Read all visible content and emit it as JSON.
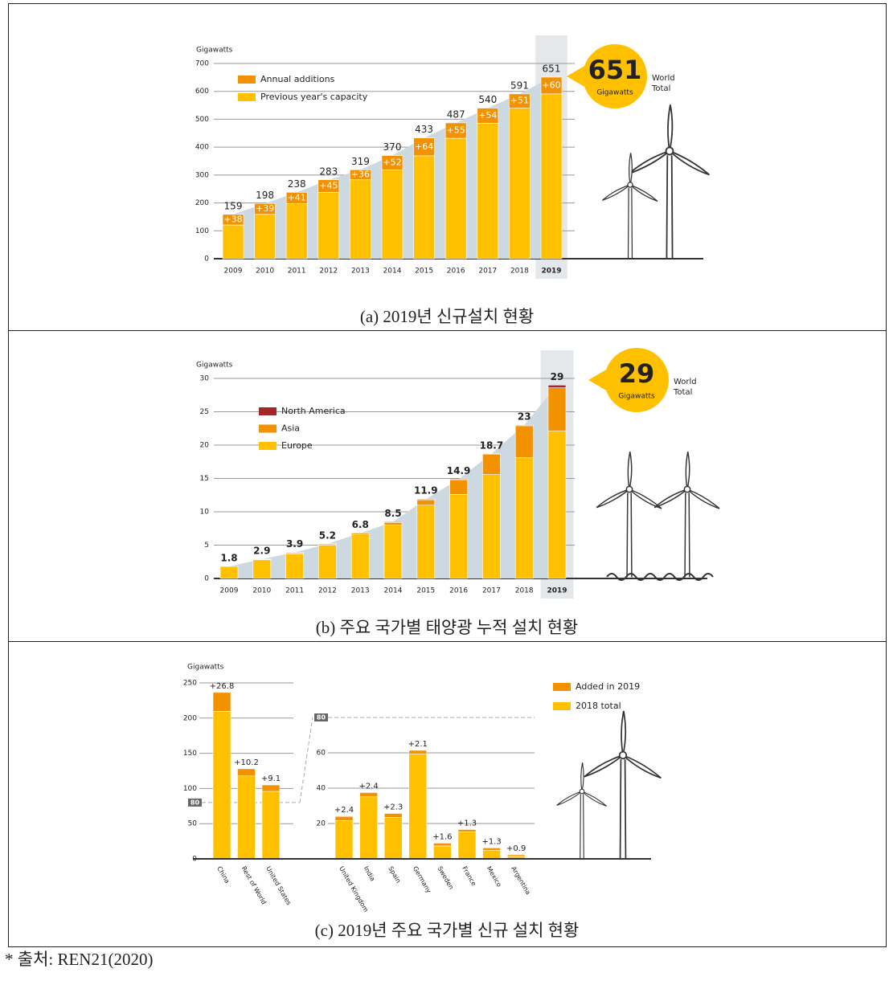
{
  "chart_data": [
    {
      "type": "stacked_bar",
      "y_label": "Gigawatts",
      "categories": [
        "2009",
        "2010",
        "2011",
        "2012",
        "2013",
        "2014",
        "2015",
        "2016",
        "2017",
        "2018",
        "2019"
      ],
      "series": [
        {
          "name": "Previous year's capacity",
          "color": "#ffc000",
          "values": [
            121,
            159,
            197,
            238,
            283,
            318,
            369,
            432,
            486,
            540,
            591
          ]
        },
        {
          "name": "Annual additions",
          "color": "#f39200",
          "values": [
            38,
            39,
            41,
            45,
            36,
            52,
            64,
            55,
            54,
            51,
            60
          ],
          "value_labels": [
            "+38",
            "+39",
            "+41",
            "+45",
            "+36",
            "+52",
            "+64",
            "+55",
            "+54",
            "+51",
            "+60"
          ]
        }
      ],
      "totals": [
        159,
        198,
        238,
        283,
        319,
        370,
        433,
        487,
        540,
        591,
        651
      ],
      "ylim": [
        0,
        700
      ],
      "yticks": [
        0,
        100,
        200,
        300,
        400,
        500,
        600,
        700
      ],
      "callout": {
        "number": 651,
        "unit": "Gigawatts",
        "label": [
          "World",
          "Total"
        ]
      }
    },
    {
      "type": "stacked_bar",
      "y_label": "Gigawatts",
      "categories": [
        "2009",
        "2010",
        "2011",
        "2012",
        "2013",
        "2014",
        "2015",
        "2016",
        "2017",
        "2018",
        "2019"
      ],
      "series": [
        {
          "name": "Europe",
          "color": "#ffc000",
          "values": [
            1.8,
            2.8,
            3.7,
            5.0,
            6.6,
            8.0,
            11.0,
            12.6,
            15.6,
            18.1,
            22.1
          ]
        },
        {
          "name": "Asia",
          "color": "#f39200",
          "values": [
            0,
            0.05,
            0.1,
            0.1,
            0.2,
            0.4,
            0.8,
            2.2,
            3.0,
            4.8,
            6.5
          ]
        },
        {
          "name": "North America",
          "color": "#a3262a",
          "values": [
            0,
            0.05,
            0.1,
            0.1,
            0,
            0.1,
            0.1,
            0.1,
            0.1,
            0.1,
            0.4
          ]
        }
      ],
      "totals": [
        1.8,
        2.9,
        3.9,
        5.2,
        6.8,
        8.5,
        11.9,
        14.9,
        18.7,
        23,
        29
      ],
      "ylim": [
        0,
        30
      ],
      "yticks": [
        0,
        5,
        10,
        15,
        20,
        25,
        30
      ],
      "callout": {
        "number": 29,
        "unit": "Gigawatts",
        "label": [
          "World",
          "Total"
        ]
      }
    },
    {
      "type": "split_stacked_bar",
      "y_label": "Gigawatts",
      "series": [
        {
          "name": "2018 total",
          "color": "#ffc000"
        },
        {
          "name": "Added in 2019",
          "color": "#f39200"
        }
      ],
      "panels": [
        {
          "categories": [
            "China",
            "Rest of World",
            "United States"
          ],
          "values": [
            [
              209.7,
              117.8,
              95.9
            ],
            [
              26.8,
              10.2,
              9.1
            ]
          ],
          "added_labels": [
            "+26.8",
            "+10.2",
            "+9.1"
          ],
          "ylim": [
            0,
            250
          ],
          "yticks": [
            0,
            50,
            100,
            150,
            200,
            250
          ],
          "ref_tick": 80
        },
        {
          "categories": [
            "United Kingdom",
            "India",
            "Spain",
            "Germany",
            "Sweden",
            "France",
            "Mexico",
            "Argentina"
          ],
          "values": [
            [
              21.6,
              35.1,
              23.4,
              59.3,
              7.3,
              15.3,
              4.9,
              1.4
            ],
            [
              2.4,
              2.4,
              2.3,
              2.1,
              1.6,
              1.3,
              1.3,
              0.9
            ]
          ],
          "added_labels": [
            "+2.4",
            "+2.4",
            "+2.3",
            "+2.1",
            "+1.6",
            "+1.3",
            "+1.3",
            "+0.9"
          ],
          "ylim": [
            0,
            80
          ],
          "yticks": [
            20,
            40,
            60
          ],
          "ref_tick": 80
        }
      ]
    }
  ],
  "captions": [
    "(a) 2019년 신규설치 현황",
    "(b) 주요 국가별 태양광 누적 설치 현황",
    "(c) 2019년 주요 국가별 신규 설치 현황"
  ],
  "source": "* 출처: REN21(2020)"
}
